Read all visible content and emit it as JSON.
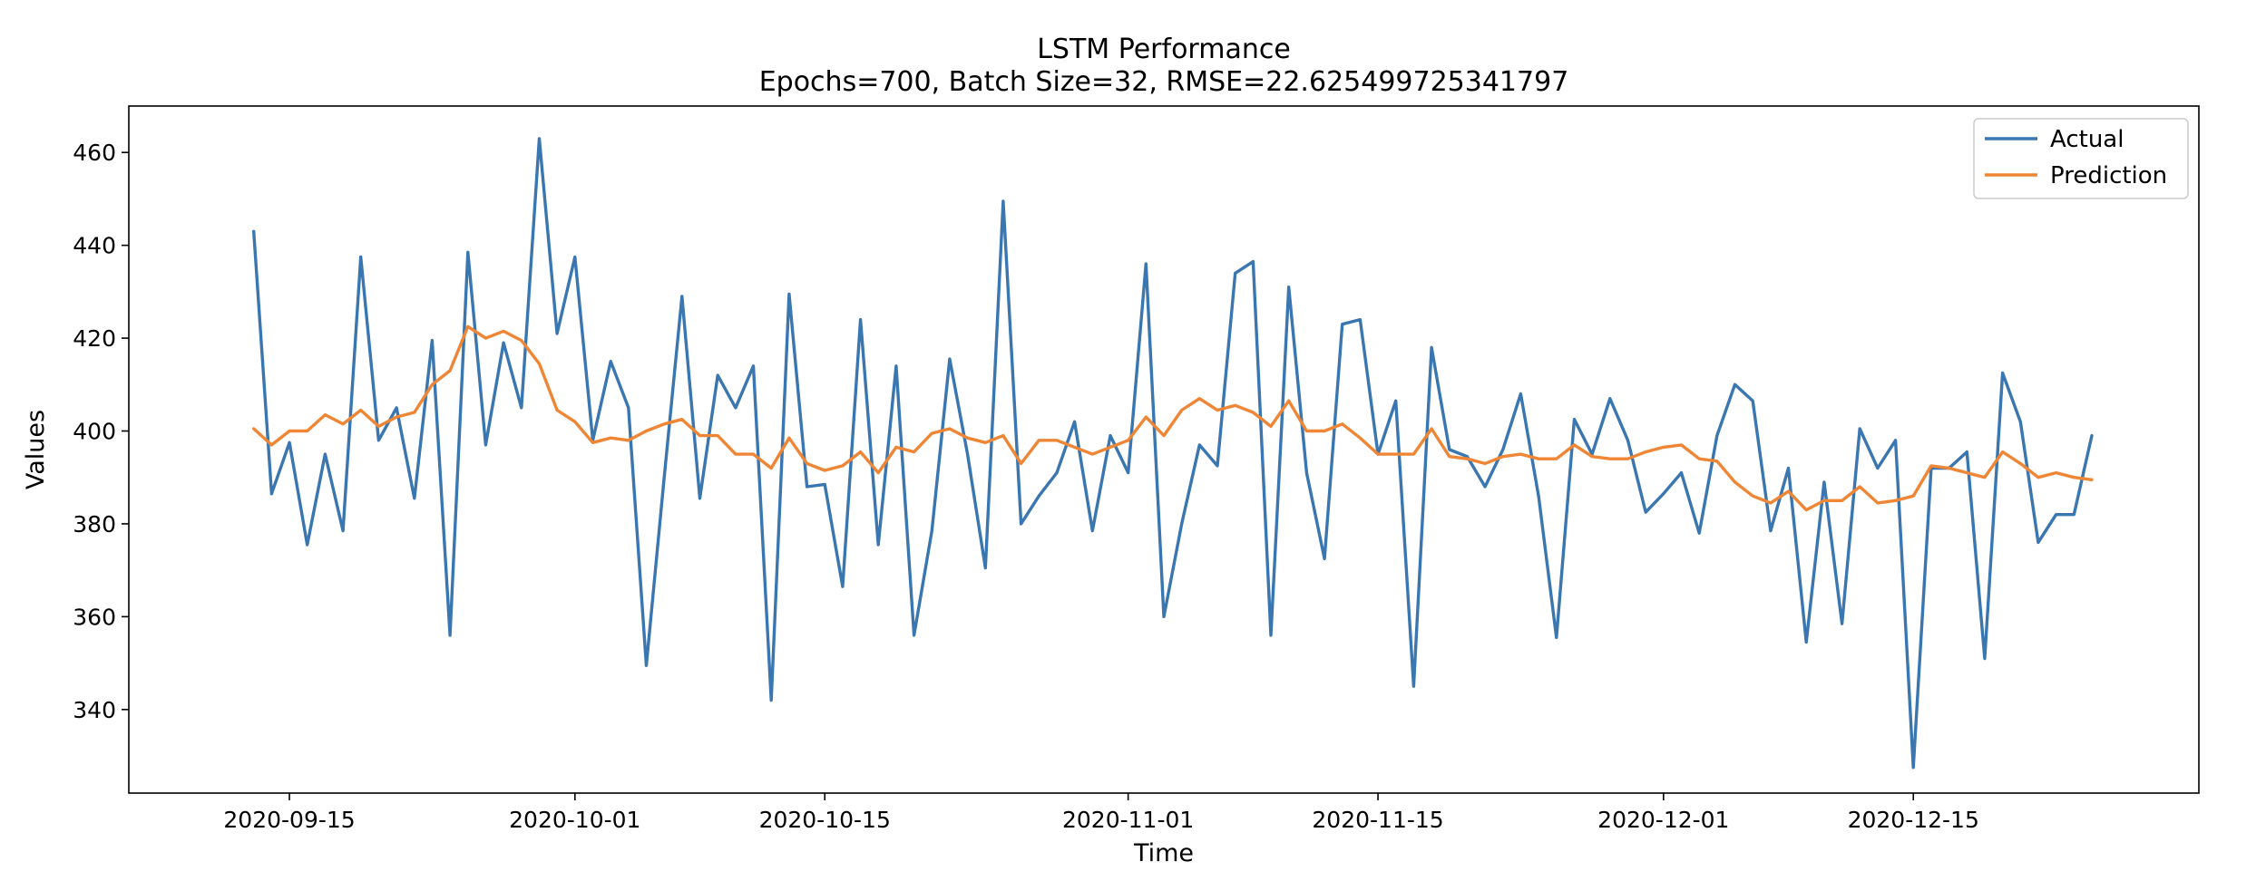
{
  "chart_data": {
    "type": "line",
    "title": "LSTM Performance",
    "subtitle": "Epochs=700, Batch Size=32, RMSE=22.625499725341797",
    "xlabel": "Time",
    "ylabel": "Values",
    "x_start": "2020-09-13",
    "x_step_days": 1,
    "xlim": [
      "2020-09-06",
      "2020-12-31"
    ],
    "ylim": [
      322,
      470
    ],
    "x_ticks": [
      "2020-09-15",
      "2020-10-01",
      "2020-10-15",
      "2020-11-01",
      "2020-11-15",
      "2020-12-01",
      "2020-12-15"
    ],
    "y_ticks": [
      340,
      360,
      380,
      400,
      420,
      440,
      460
    ],
    "grid": false,
    "legend_position": "top-right",
    "series": [
      {
        "name": "Actual",
        "color": "#3a76af",
        "values": [
          443,
          386.5,
          397.5,
          375.5,
          395,
          378.5,
          437.5,
          398,
          405,
          385.5,
          419.5,
          356,
          438.5,
          397,
          419,
          405,
          463,
          421,
          437.5,
          398,
          415,
          405,
          349.5,
          390,
          429,
          385.5,
          412,
          405,
          414,
          342,
          429.5,
          388,
          388.5,
          366.5,
          424,
          375.5,
          414,
          356,
          378.5,
          415.5,
          395,
          370.5,
          449.5,
          380,
          386,
          391,
          402,
          378.5,
          399,
          391,
          436,
          360,
          380,
          397,
          392.5,
          434,
          436.5,
          356,
          431,
          391,
          372.5,
          423,
          424,
          395,
          406.5,
          345,
          418,
          396,
          394.5,
          388,
          396,
          408,
          386,
          355.5,
          402.5,
          395,
          407,
          398,
          382.5,
          386.5,
          391,
          378,
          399,
          410,
          406.5,
          378.5,
          392,
          354.5,
          389,
          358.5,
          400.5,
          392,
          398,
          327.5,
          392,
          392,
          395.5,
          351,
          412.5,
          402,
          376,
          382,
          382,
          399
        ]
      },
      {
        "name": "Prediction",
        "color": "#ef8636",
        "values": [
          400.5,
          397,
          400,
          400,
          403.5,
          401.5,
          404.5,
          401,
          403,
          404,
          410,
          413,
          422.5,
          420,
          421.5,
          419.5,
          414.5,
          404.5,
          402,
          397.5,
          398.5,
          398,
          400,
          401.5,
          402.5,
          399,
          399,
          395,
          395,
          392,
          398.5,
          393,
          391.5,
          392.5,
          395.5,
          391,
          396.5,
          395.5,
          399.5,
          400.5,
          398.5,
          397.5,
          399,
          393,
          398,
          398,
          396.5,
          395,
          396.5,
          398,
          403,
          399,
          404.5,
          407,
          404.5,
          405.5,
          404,
          401,
          406.5,
          400,
          400,
          401.5,
          398.5,
          395,
          395,
          395,
          400.5,
          394.5,
          394,
          393,
          394.5,
          395,
          394,
          394,
          397,
          394.5,
          394,
          394,
          395.5,
          396.5,
          397,
          394,
          393.5,
          389,
          386,
          384.5,
          387,
          383,
          385,
          385,
          388,
          384.5,
          385,
          386,
          392.5,
          392,
          391,
          390,
          395.5,
          393,
          390,
          391,
          390,
          389.5
        ]
      }
    ]
  }
}
